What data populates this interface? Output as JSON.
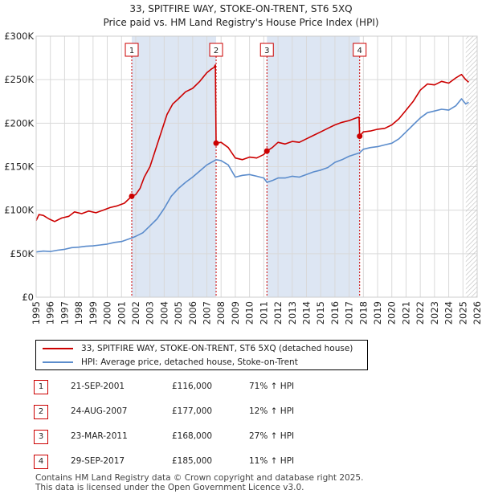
{
  "title_line1": "33, SPITFIRE WAY, STOKE-ON-TRENT, ST6 5XQ",
  "title_line2": "Price paid vs. HM Land Registry's House Price Index (HPI)",
  "chart_data": {
    "type": "line",
    "title": "33, SPITFIRE WAY, STOKE-ON-TRENT, ST6 5XQ — Price paid vs. HM Land Registry's House Price Index (HPI)",
    "xlim": [
      1995,
      2026
    ],
    "ylim": [
      0,
      300000
    ],
    "y_ticks": [
      0,
      50000,
      100000,
      150000,
      200000,
      250000,
      300000
    ],
    "y_tick_labels": [
      "£0",
      "£50K",
      "£100K",
      "£150K",
      "£200K",
      "£250K",
      "£300K"
    ],
    "x_ticks": [
      "1995",
      "1996",
      "1997",
      "1998",
      "1999",
      "2000",
      "2001",
      "2002",
      "2003",
      "2004",
      "2005",
      "2006",
      "2007",
      "2008",
      "2009",
      "2010",
      "2011",
      "2012",
      "2013",
      "2014",
      "2015",
      "2016",
      "2017",
      "2018",
      "2019",
      "2020",
      "2021",
      "2022",
      "2023",
      "2024",
      "2025",
      "2026"
    ],
    "grid": true,
    "shaded_periods": [
      [
        2001.72,
        2007.65
      ],
      [
        2011.22,
        2017.74
      ]
    ],
    "hatched_region": [
      2025.2,
      2026
    ],
    "colors": {
      "property": "#cc0000",
      "hpi": "#5b8ccc",
      "shade": "#dde6f3",
      "grid": "#d9d9d9"
    },
    "series": [
      {
        "name": "33, SPITFIRE WAY, STOKE-ON-TRENT, ST6 5XQ (detached house)",
        "color": "#cc0000",
        "points": [
          [
            1995.0,
            88000
          ],
          [
            1995.2,
            95000
          ],
          [
            1995.5,
            94000
          ],
          [
            1995.9,
            90000
          ],
          [
            1996.3,
            87000
          ],
          [
            1996.8,
            91000
          ],
          [
            1997.3,
            93000
          ],
          [
            1997.7,
            98000
          ],
          [
            1998.2,
            96000
          ],
          [
            1998.7,
            99000
          ],
          [
            1999.2,
            97000
          ],
          [
            1999.7,
            100000
          ],
          [
            2000.2,
            103000
          ],
          [
            2000.7,
            105000
          ],
          [
            2001.2,
            108000
          ],
          [
            2001.72,
            116000
          ],
          [
            2002.0,
            118000
          ],
          [
            2002.3,
            125000
          ],
          [
            2002.6,
            138000
          ],
          [
            2003.0,
            150000
          ],
          [
            2003.4,
            170000
          ],
          [
            2003.8,
            190000
          ],
          [
            2004.2,
            210000
          ],
          [
            2004.6,
            222000
          ],
          [
            2005.0,
            228000
          ],
          [
            2005.5,
            236000
          ],
          [
            2006.0,
            240000
          ],
          [
            2006.5,
            248000
          ],
          [
            2007.0,
            258000
          ],
          [
            2007.3,
            262000
          ],
          [
            2007.5,
            264000
          ],
          [
            2007.6,
            267000
          ],
          [
            2007.65,
            177000
          ],
          [
            2008.0,
            178000
          ],
          [
            2008.5,
            172000
          ],
          [
            2009.0,
            160000
          ],
          [
            2009.5,
            158000
          ],
          [
            2010.0,
            161000
          ],
          [
            2010.5,
            160000
          ],
          [
            2011.0,
            164000
          ],
          [
            2011.22,
            168000
          ],
          [
            2011.6,
            172000
          ],
          [
            2012.0,
            178000
          ],
          [
            2012.5,
            176000
          ],
          [
            2013.0,
            179000
          ],
          [
            2013.5,
            178000
          ],
          [
            2014.0,
            182000
          ],
          [
            2014.5,
            186000
          ],
          [
            2015.0,
            190000
          ],
          [
            2015.5,
            194000
          ],
          [
            2016.0,
            198000
          ],
          [
            2016.5,
            201000
          ],
          [
            2017.0,
            203000
          ],
          [
            2017.5,
            206000
          ],
          [
            2017.7,
            207000
          ],
          [
            2017.74,
            185000
          ],
          [
            2018.0,
            190000
          ],
          [
            2018.5,
            191000
          ],
          [
            2019.0,
            193000
          ],
          [
            2019.5,
            194000
          ],
          [
            2020.0,
            198000
          ],
          [
            2020.5,
            205000
          ],
          [
            2021.0,
            215000
          ],
          [
            2021.5,
            225000
          ],
          [
            2022.0,
            238000
          ],
          [
            2022.5,
            245000
          ],
          [
            2023.0,
            244000
          ],
          [
            2023.5,
            248000
          ],
          [
            2024.0,
            246000
          ],
          [
            2024.5,
            252000
          ],
          [
            2024.9,
            256000
          ],
          [
            2025.2,
            250000
          ],
          [
            2025.4,
            247000
          ]
        ]
      },
      {
        "name": "HPI: Average price, detached house, Stoke-on-Trent",
        "color": "#5b8ccc",
        "points": [
          [
            1995.0,
            52000
          ],
          [
            1995.5,
            53000
          ],
          [
            1996.0,
            52500
          ],
          [
            1996.5,
            54000
          ],
          [
            1997.0,
            55000
          ],
          [
            1997.5,
            57000
          ],
          [
            1998.0,
            57500
          ],
          [
            1998.5,
            58500
          ],
          [
            1999.0,
            59000
          ],
          [
            1999.5,
            60000
          ],
          [
            2000.0,
            61000
          ],
          [
            2000.5,
            63000
          ],
          [
            2001.0,
            64000
          ],
          [
            2001.72,
            68000
          ],
          [
            2002.0,
            70000
          ],
          [
            2002.5,
            74000
          ],
          [
            2003.0,
            82000
          ],
          [
            2003.5,
            90000
          ],
          [
            2004.0,
            102000
          ],
          [
            2004.5,
            116000
          ],
          [
            2005.0,
            125000
          ],
          [
            2005.5,
            132000
          ],
          [
            2006.0,
            138000
          ],
          [
            2006.5,
            145000
          ],
          [
            2007.0,
            152000
          ],
          [
            2007.65,
            158000
          ],
          [
            2008.0,
            157000
          ],
          [
            2008.5,
            152000
          ],
          [
            2009.0,
            138000
          ],
          [
            2009.5,
            140000
          ],
          [
            2010.0,
            141000
          ],
          [
            2010.5,
            139000
          ],
          [
            2011.0,
            137000
          ],
          [
            2011.22,
            132000
          ],
          [
            2011.6,
            134000
          ],
          [
            2012.0,
            137000
          ],
          [
            2012.5,
            137000
          ],
          [
            2013.0,
            139000
          ],
          [
            2013.5,
            138000
          ],
          [
            2014.0,
            141000
          ],
          [
            2014.5,
            144000
          ],
          [
            2015.0,
            146000
          ],
          [
            2015.5,
            149000
          ],
          [
            2016.0,
            155000
          ],
          [
            2016.5,
            158000
          ],
          [
            2017.0,
            162000
          ],
          [
            2017.74,
            166000
          ],
          [
            2018.0,
            170000
          ],
          [
            2018.5,
            172000
          ],
          [
            2019.0,
            173000
          ],
          [
            2019.5,
            175000
          ],
          [
            2020.0,
            177000
          ],
          [
            2020.5,
            182000
          ],
          [
            2021.0,
            190000
          ],
          [
            2021.5,
            198000
          ],
          [
            2022.0,
            206000
          ],
          [
            2022.5,
            212000
          ],
          [
            2023.0,
            214000
          ],
          [
            2023.5,
            216000
          ],
          [
            2024.0,
            215000
          ],
          [
            2024.5,
            220000
          ],
          [
            2024.9,
            228000
          ],
          [
            2025.2,
            222000
          ],
          [
            2025.4,
            224000
          ]
        ]
      }
    ],
    "sale_markers": [
      {
        "label": "1",
        "x": 2001.72,
        "y": 116000
      },
      {
        "label": "2",
        "x": 2007.65,
        "y": 177000
      },
      {
        "label": "3",
        "x": 2011.22,
        "y": 168000
      },
      {
        "label": "4",
        "x": 2017.74,
        "y": 185000
      }
    ]
  },
  "legend": {
    "property_label": "33, SPITFIRE WAY, STOKE-ON-TRENT, ST6 5XQ (detached house)",
    "hpi_label": "HPI: Average price, detached house, Stoke-on-Trent"
  },
  "sales": [
    {
      "num": "1",
      "date": "21-SEP-2001",
      "price": "£116,000",
      "hpi": "71% ↑ HPI"
    },
    {
      "num": "2",
      "date": "24-AUG-2007",
      "price": "£177,000",
      "hpi": "12% ↑ HPI"
    },
    {
      "num": "3",
      "date": "23-MAR-2011",
      "price": "£168,000",
      "hpi": "27% ↑ HPI"
    },
    {
      "num": "4",
      "date": "29-SEP-2017",
      "price": "£185,000",
      "hpi": "11% ↑ HPI"
    }
  ],
  "footer": {
    "line1": "Contains HM Land Registry data © Crown copyright and database right 2025.",
    "line2": "This data is licensed under the Open Government Licence v3.0."
  }
}
